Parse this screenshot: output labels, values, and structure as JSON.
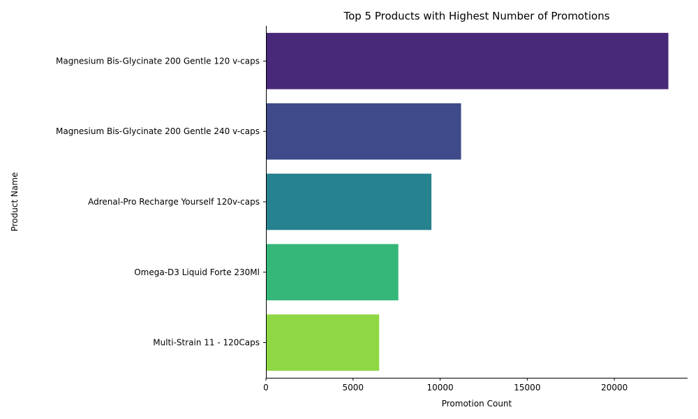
{
  "chart_data": {
    "type": "bar",
    "orientation": "horizontal",
    "title": "Top 5 Products with Highest Number of Promotions",
    "xlabel": "Promotion Count",
    "ylabel": "Product Name",
    "categories": [
      "Magnesium Bis-Glycinate 200 Gentle 120 v-caps",
      "Magnesium Bis-Glycinate 200 Gentle 240 v-caps",
      "Adrenal-Pro Recharge Yourself 120v-caps",
      "Omega-D3 Liquid Forte 230Ml",
      "Multi-Strain 11 - 120Caps"
    ],
    "values": [
      23100,
      11200,
      9500,
      7600,
      6500
    ],
    "colors": [
      "#482878",
      "#3e4a89",
      "#26828e",
      "#35b779",
      "#8fd744"
    ],
    "xlim": [
      0,
      24200
    ],
    "xticks": [
      0,
      5000,
      10000,
      15000,
      20000
    ],
    "grid": false,
    "legend": "none"
  }
}
